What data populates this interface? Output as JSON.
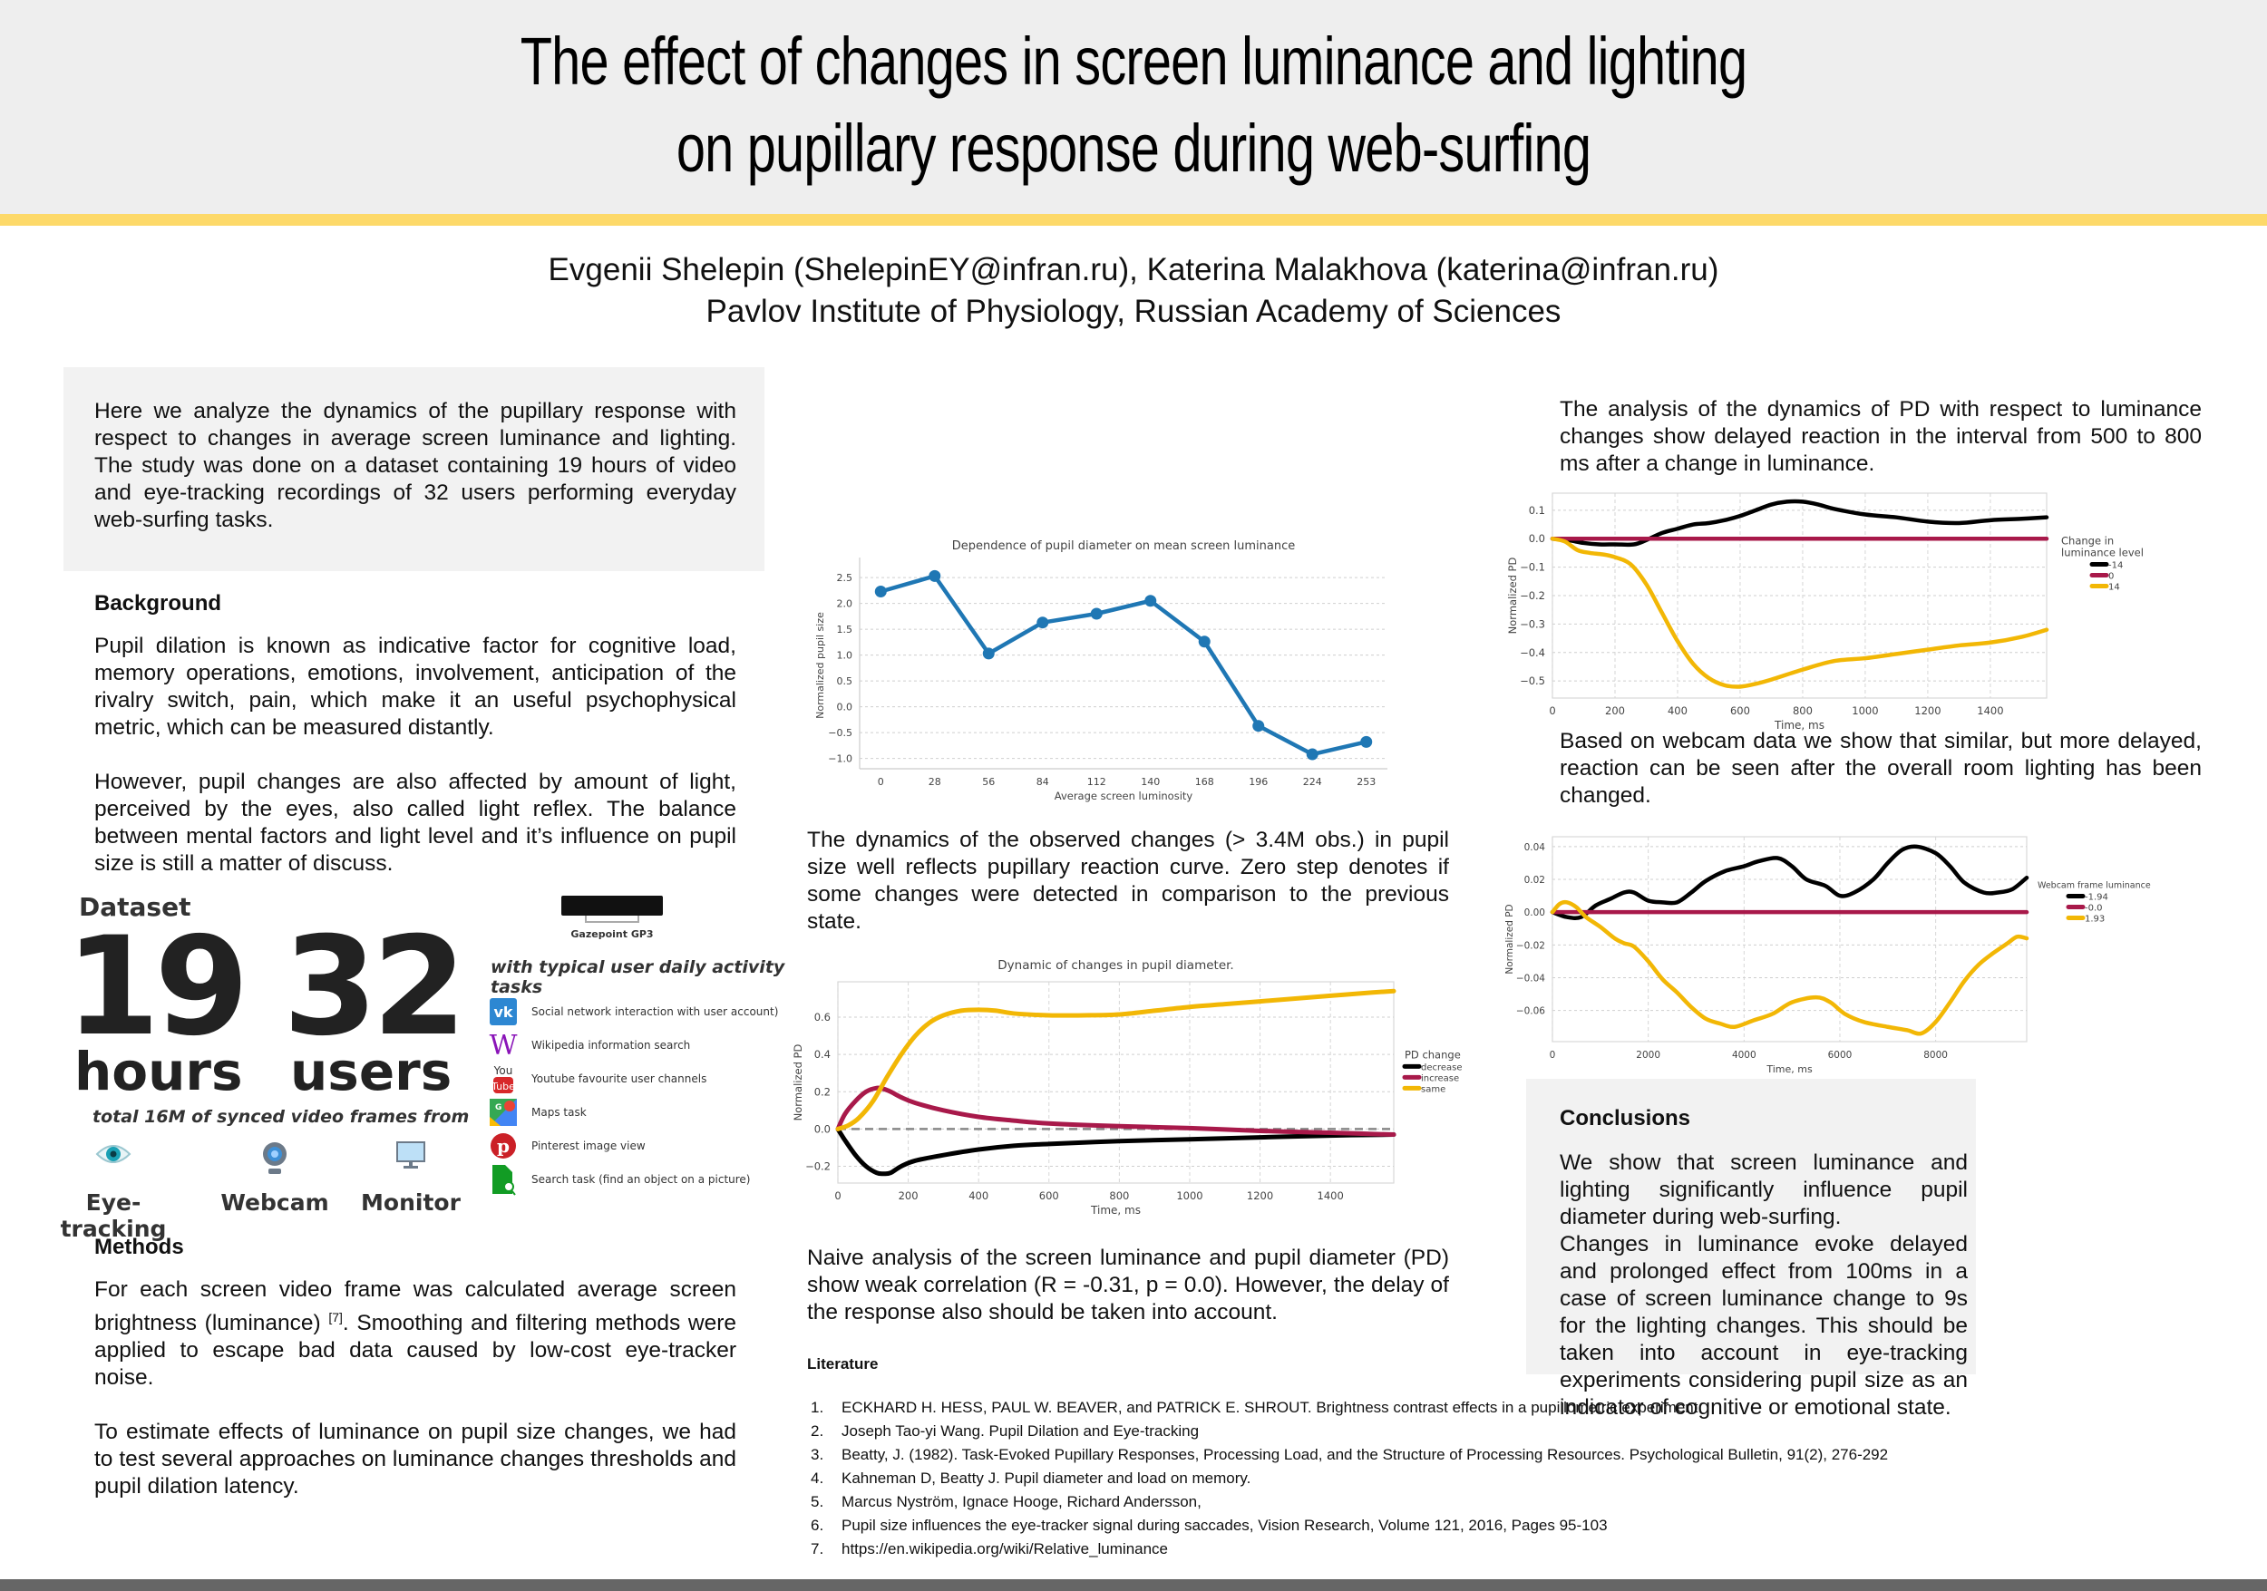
{
  "title": {
    "line1": "The effect of changes in screen luminance and lighting",
    "line2": "on pupillary response during web-surfing"
  },
  "authors": {
    "names": "Evgenii Shelepin (ShelepinEY@infran.ru), Katerina Malakhova (katerina@infran.ru)",
    "affiliation": "Pavlov Institute of Physiology, Russian Academy of Sciences"
  },
  "intro": "Here we analyze the dynamics of the pupillary response with respect to changes in average screen luminance and lighting. The study was done on a dataset containing 19 hours of video and eye-tracking recordings of 32 users performing everyday web-surfing tasks.",
  "background": {
    "title": "Background",
    "p1": "Pupil dilation is known as indicative factor for cognitive load, memory operations, emotions, involvement, anticipation of the rivalry switch, pain, which make it an useful psychophysical metric, which can be measured distantly.",
    "p2": "However, pupil changes are also affected by amount of light, perceived by the eyes, also called light reflex. The balance between mental factors and light level and it’s influence on pupil size is still a matter of discuss."
  },
  "dataset": {
    "title": "Dataset",
    "hours_value": "19",
    "hours_label": "hours",
    "users_value": "32",
    "users_label": "users",
    "subtitle": "total 16M of synced video frames from",
    "sources": [
      "Eye-tracking",
      "Webcam",
      "Monitor"
    ],
    "device": "Gazepoint GP3",
    "tasks_title": "with typical user daily activity tasks",
    "tasks": [
      {
        "icon": "vk-icon",
        "label": "Social network interaction with user account)"
      },
      {
        "icon": "wikipedia-icon",
        "label": "Wikipedia information search"
      },
      {
        "icon": "youtube-icon",
        "label": "Youtube favourite user channels"
      },
      {
        "icon": "google-maps-icon",
        "label": "Maps task"
      },
      {
        "icon": "pinterest-icon",
        "label": "Pinterest image view"
      },
      {
        "icon": "search-document-icon",
        "label": "Search task (find an object on a picture)"
      }
    ]
  },
  "methods": {
    "title": "Methods",
    "p1_before": "For each screen video frame was calculated average screen brightness (luminance) ",
    "p1_ref": "[7]",
    "p1_after": ". Smoothing and filtering methods were applied to escape bad data caused by low-cost eye-tracker noise.",
    "p2": "To estimate effects of luminance on pupil size changes, we had to test several approaches on luminance changes thresholds and pupil dilation latency."
  },
  "middle": {
    "text1": "The dynamics of the observed changes (> 3.4M obs.) in pupil size well reflects pupillary reaction curve. Zero step denotes if some changes were detected in comparison to the previous state.",
    "text2": "Naive analysis of the screen luminance and pupil diameter (PD) show weak correlation (R = -0.31, p = 0.0). However, the delay of the response also should be taken into account."
  },
  "right": {
    "text1": "The analysis of the dynamics of PD with respect to luminance changes show delayed reaction in the interval from 500 to 800 ms after a change in luminance.",
    "text2": "Based on webcam data we show that similar, but more delayed, reaction can be seen after the overall room lighting has been changed."
  },
  "conclusions": {
    "title": "Conclusions",
    "p1": "We show that screen luminance and lighting significantly influence pupil diameter during web-surfing.",
    "p2": "Changes in luminance evoke delayed and prolonged effect from 100ms in a case of screen luminance change to 9s for the lighting changes. This should be taken into account in eye-tracking experiments considering pupil size as an indicator of cognitive or emotional state."
  },
  "literature": {
    "title": "Literature",
    "items": [
      "ECKHARD H. HESS, PAUL W. BEAVER, and PATRICK E. SHROUT. Brightness contrast effects in a pupillometric experiment",
      "Joseph Tao-yi Wang.  Pupil Dilation and Eye-tracking",
      "Beatty, J. (1982). Task-Evoked Pupillary Responses, Processing Load, and the Structure of Processing Resources. Psychological Bulletin, 91(2), 276-292",
      "Kahneman D, Beatty J. Pupil diameter and load on memory.",
      "Marcus Nyström, Ignace Hooge, Richard Andersson,",
      "Pupil size influences the eye-tracker signal during saccades, Vision Research, Volume 121, 2016, Pages 95-103",
      "https://en.wikipedia.org/wiki/Relative_luminance"
    ]
  },
  "colors": {
    "header_bg": "#eeeeee",
    "accent_yellow": "#fdd969",
    "box_bg": "#f2f2f2",
    "footer": "#666666",
    "series_blue": "#1f77b4",
    "series_black": "#000000",
    "series_crimson": "#a8194a",
    "series_gold": "#f2b705"
  },
  "chart_data": [
    {
      "id": "luminosity",
      "type": "line",
      "title": "Dependence of pupil diameter on mean screen luminance",
      "xlabel": "Average screen luminosity",
      "ylabel": "Normalized pupil size",
      "categories": [
        "0",
        "28",
        "56",
        "84",
        "112",
        "140",
        "168",
        "196",
        "224",
        "253"
      ],
      "values": [
        2.23,
        2.53,
        1.03,
        1.63,
        1.8,
        2.05,
        1.26,
        -0.37,
        -0.92,
        -0.68
      ],
      "yticks": [
        -1.0,
        -0.5,
        0.0,
        0.5,
        1.0,
        1.5,
        2.0,
        2.5
      ],
      "ylim": [
        -1.2,
        2.8
      ],
      "grid": "horizontal-dashed",
      "markers": true,
      "color": "#1f77b4"
    },
    {
      "id": "dynamics",
      "type": "line",
      "title": "Dynamic of changes in pupil diameter.",
      "xlabel": "Time, ms",
      "ylabel": "Normalized PD",
      "xlim": [
        0,
        1580
      ],
      "ylim": [
        -0.29,
        0.79
      ],
      "xticks": [
        0,
        200,
        400,
        600,
        800,
        1000,
        1200,
        1400
      ],
      "yticks": [
        -0.2,
        0.0,
        0.2,
        0.4,
        0.6
      ],
      "legend_title": "PD change",
      "legend_position": "right",
      "zero_line": true,
      "series": [
        {
          "name": "decrease",
          "color": "#000000",
          "x": [
            0,
            20,
            50,
            80,
            110,
            130,
            150,
            180,
            220,
            300,
            400,
            500,
            600,
            800,
            1000,
            1200,
            1400,
            1580
          ],
          "y": [
            0,
            -0.06,
            -0.14,
            -0.2,
            -0.235,
            -0.24,
            -0.235,
            -0.2,
            -0.17,
            -0.14,
            -0.11,
            -0.09,
            -0.08,
            -0.065,
            -0.055,
            -0.045,
            -0.035,
            -0.03
          ]
        },
        {
          "name": "increase",
          "color": "#a8194a",
          "x": [
            0,
            20,
            50,
            80,
            110,
            130,
            150,
            180,
            220,
            300,
            400,
            500,
            600,
            800,
            1000,
            1200,
            1400,
            1580
          ],
          "y": [
            0,
            0.08,
            0.15,
            0.2,
            0.22,
            0.215,
            0.2,
            0.17,
            0.14,
            0.1,
            0.065,
            0.045,
            0.03,
            0.015,
            0.005,
            -0.01,
            -0.02,
            -0.03
          ]
        },
        {
          "name": "same",
          "color": "#f2b705",
          "x": [
            0,
            30,
            60,
            100,
            140,
            180,
            220,
            260,
            300,
            350,
            400,
            450,
            500,
            600,
            700,
            800,
            900,
            1000,
            1100,
            1200,
            1300,
            1400,
            1500,
            1580
          ],
          "y": [
            0,
            0.02,
            0.06,
            0.15,
            0.28,
            0.4,
            0.5,
            0.57,
            0.61,
            0.635,
            0.64,
            0.635,
            0.62,
            0.61,
            0.61,
            0.615,
            0.635,
            0.655,
            0.67,
            0.685,
            0.7,
            0.715,
            0.73,
            0.74
          ]
        }
      ]
    },
    {
      "id": "screen-luminance",
      "type": "line",
      "title": "",
      "xlabel": "Time, ms",
      "ylabel": "Normalized PD",
      "xlim": [
        0,
        1580
      ],
      "ylim": [
        -0.56,
        0.16
      ],
      "xticks": [
        0,
        200,
        400,
        600,
        800,
        1000,
        1200,
        1400
      ],
      "yticks": [
        -0.5,
        -0.4,
        -0.3,
        -0.2,
        -0.1,
        0.0,
        0.1
      ],
      "legend_title": "Change in luminance level",
      "legend_position": "right",
      "series": [
        {
          "name": "-14",
          "color": "#000000",
          "x": [
            0,
            50,
            100,
            150,
            200,
            260,
            300,
            350,
            400,
            450,
            500,
            550,
            600,
            650,
            700,
            750,
            800,
            850,
            900,
            1000,
            1100,
            1200,
            1300,
            1400,
            1500,
            1580
          ],
          "y": [
            0,
            -0.005,
            -0.015,
            -0.02,
            -0.02,
            -0.02,
            -0.005,
            0.02,
            0.035,
            0.05,
            0.055,
            0.065,
            0.08,
            0.1,
            0.12,
            0.13,
            0.13,
            0.12,
            0.105,
            0.085,
            0.075,
            0.06,
            0.055,
            0.065,
            0.07,
            0.075
          ]
        },
        {
          "name": "0",
          "color": "#a8194a",
          "x": [
            0,
            1580
          ],
          "y": [
            0,
            0
          ]
        },
        {
          "name": "14",
          "color": "#f2b705",
          "x": [
            0,
            40,
            80,
            120,
            160,
            200,
            250,
            300,
            350,
            400,
            450,
            500,
            550,
            600,
            650,
            700,
            800,
            900,
            1000,
            1100,
            1200,
            1300,
            1400,
            1500,
            1580
          ],
          "y": [
            0,
            -0.01,
            -0.04,
            -0.05,
            -0.055,
            -0.065,
            -0.09,
            -0.16,
            -0.26,
            -0.36,
            -0.44,
            -0.49,
            -0.515,
            -0.52,
            -0.51,
            -0.495,
            -0.46,
            -0.43,
            -0.42,
            -0.405,
            -0.39,
            -0.375,
            -0.365,
            -0.345,
            -0.32
          ]
        }
      ]
    },
    {
      "id": "webcam",
      "type": "line",
      "title": "",
      "xlabel": "Time, ms",
      "ylabel": "Normalized PD",
      "xlim": [
        0,
        9900
      ],
      "ylim": [
        -0.079,
        0.046
      ],
      "xticks": [
        0,
        2000,
        4000,
        6000,
        8000
      ],
      "yticks": [
        -0.06,
        -0.04,
        -0.02,
        0.0,
        0.02,
        0.04
      ],
      "legend_title": "Webcam frame luminance",
      "legend_position": "right",
      "series": [
        {
          "name": "-1.94",
          "color": "#000000",
          "x": [
            0,
            300,
            600,
            900,
            1200,
            1500,
            1700,
            2000,
            2300,
            2600,
            2900,
            3200,
            3600,
            4000,
            4300,
            4700,
            5000,
            5300,
            5700,
            6000,
            6300,
            6700,
            7000,
            7300,
            7600,
            8000,
            8300,
            8600,
            9000,
            9300,
            9600,
            9900
          ],
          "y": [
            0,
            -0.003,
            -0.003,
            0.004,
            0.008,
            0.012,
            0.012,
            0.007,
            0.006,
            0.006,
            0.012,
            0.019,
            0.025,
            0.028,
            0.031,
            0.033,
            0.028,
            0.02,
            0.016,
            0.01,
            0.012,
            0.02,
            0.03,
            0.038,
            0.04,
            0.036,
            0.028,
            0.018,
            0.012,
            0.012,
            0.014,
            0.021
          ]
        },
        {
          "name": "-0.0",
          "color": "#a8194a",
          "x": [
            0,
            9900
          ],
          "y": [
            0,
            0
          ]
        },
        {
          "name": "1.93",
          "color": "#f2b705",
          "x": [
            0,
            150,
            300,
            500,
            700,
            1000,
            1300,
            1500,
            1700,
            2000,
            2300,
            2600,
            2900,
            3200,
            3500,
            3800,
            4200,
            4600,
            5000,
            5500,
            5800,
            6100,
            6500,
            7000,
            7400,
            7700,
            8000,
            8300,
            8600,
            8900,
            9200,
            9500,
            9700,
            9900
          ],
          "y": [
            0.0,
            0.005,
            0.006,
            0.003,
            -0.003,
            -0.009,
            -0.016,
            -0.019,
            -0.021,
            -0.03,
            -0.041,
            -0.049,
            -0.058,
            -0.065,
            -0.068,
            -0.07,
            -0.066,
            -0.062,
            -0.055,
            -0.052,
            -0.055,
            -0.062,
            -0.067,
            -0.07,
            -0.072,
            -0.074,
            -0.067,
            -0.055,
            -0.042,
            -0.032,
            -0.025,
            -0.019,
            -0.015,
            -0.016
          ]
        }
      ]
    }
  ]
}
